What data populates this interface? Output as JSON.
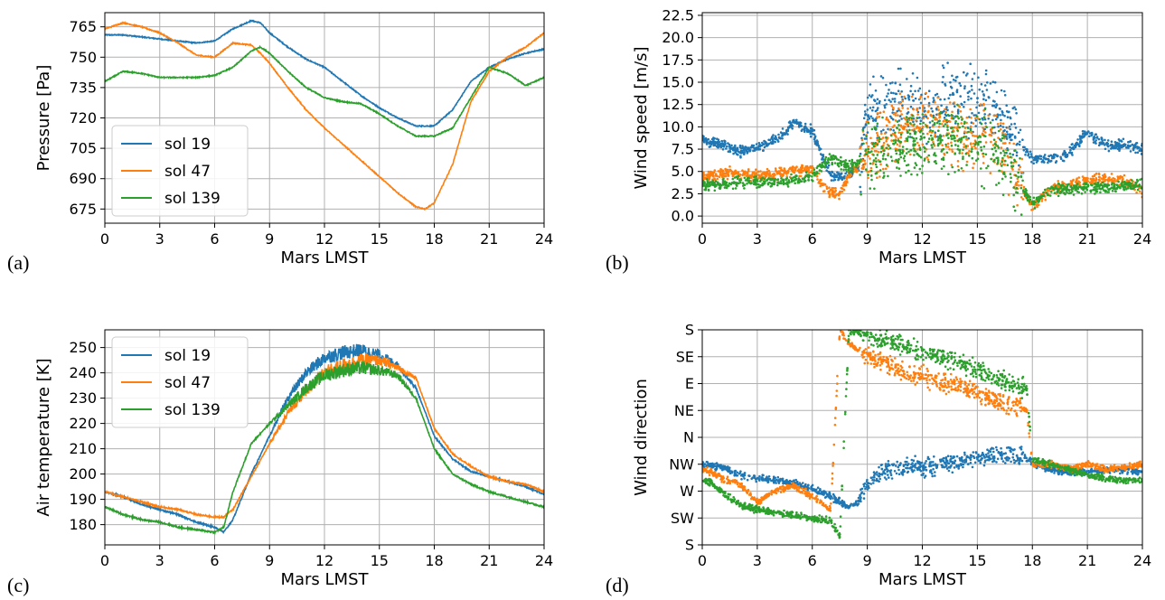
{
  "chart_data": [
    {
      "id": "a",
      "panel_label": "(a)",
      "type": "line",
      "xlabel": "Mars LMST",
      "ylabel": "Pressure [Pa]",
      "xlim": [
        0,
        24
      ],
      "ylim": [
        668,
        772
      ],
      "xticks": [
        0,
        3,
        6,
        9,
        12,
        15,
        18,
        21,
        24
      ],
      "yticks": [
        675,
        690,
        705,
        720,
        735,
        750,
        765
      ],
      "grid": true,
      "legend": {
        "position": "lower-left",
        "entries": [
          "sol 19",
          "sol 47",
          "sol 139"
        ]
      },
      "series": [
        {
          "name": "sol 19",
          "color": "#1f77b4",
          "x": [
            0,
            1,
            2,
            3,
            4,
            5,
            6,
            7,
            8,
            8.5,
            9,
            10,
            11,
            12,
            13,
            14,
            15,
            16,
            17,
            18,
            19,
            20,
            21,
            22,
            23,
            24
          ],
          "y": [
            761,
            761,
            760,
            759,
            758,
            757,
            758,
            764,
            768,
            767,
            762,
            755,
            749,
            745,
            738,
            731,
            725,
            720,
            716,
            716,
            724,
            738,
            745,
            749,
            752,
            754
          ]
        },
        {
          "name": "sol 47",
          "color": "#ff7f0e",
          "x": [
            0,
            1,
            2,
            3,
            4,
            5,
            6,
            7,
            8,
            8.5,
            9,
            10,
            11,
            12,
            13,
            14,
            15,
            16,
            17,
            17.5,
            18,
            19,
            20,
            21,
            22,
            23,
            24
          ],
          "y": [
            764,
            767,
            765,
            762,
            757,
            751,
            750,
            757,
            756,
            752,
            747,
            735,
            724,
            715,
            707,
            699,
            691,
            683,
            676,
            675,
            678,
            697,
            728,
            743,
            750,
            755,
            762
          ]
        },
        {
          "name": "sol 139",
          "color": "#2ca02c",
          "x": [
            0,
            1,
            2,
            3,
            4,
            5,
            6,
            7,
            8,
            8.5,
            9,
            10,
            11,
            12,
            13,
            14,
            15,
            16,
            17,
            18,
            19,
            20,
            21,
            22,
            23,
            24
          ],
          "y": [
            738,
            743,
            742,
            740,
            740,
            740,
            741,
            745,
            753,
            755,
            752,
            743,
            735,
            730,
            728,
            727,
            722,
            716,
            711,
            711,
            715,
            730,
            745,
            742,
            736,
            740
          ]
        }
      ]
    },
    {
      "id": "b",
      "panel_label": "(b)",
      "type": "scatter",
      "xlabel": "Mars LMST",
      "ylabel": "Wind speed [m/s]",
      "xlim": [
        0,
        24
      ],
      "ylim": [
        -0.8,
        22.8
      ],
      "xticks": [
        0,
        3,
        6,
        9,
        12,
        15,
        18,
        21,
        24
      ],
      "yticks": [
        0.0,
        2.5,
        5.0,
        7.5,
        10.0,
        12.5,
        15.0,
        17.5,
        20.0,
        22.5
      ],
      "ytick_labels": [
        "0.0",
        "2.5",
        "5.0",
        "7.5",
        "10.0",
        "12.5",
        "15.0",
        "17.5",
        "20.0",
        "22.5"
      ],
      "grid": true,
      "series": [
        {
          "name": "sol 19",
          "color": "#1f77b4",
          "x": [
            0,
            1,
            2,
            3,
            4,
            5,
            6,
            7,
            8,
            8.7,
            9,
            10,
            11,
            12,
            13,
            14,
            15,
            16,
            17,
            17.5,
            18,
            19,
            20,
            21,
            22,
            23,
            24
          ],
          "y": [
            8.5,
            8.2,
            7.2,
            7.6,
            8.5,
            10.5,
            9.5,
            4.5,
            4.5,
            6,
            12,
            12.5,
            13,
            12,
            13,
            13.5,
            12.5,
            12,
            9,
            7.5,
            6.5,
            6.5,
            7,
            9.5,
            8,
            8,
            7.5
          ]
        },
        {
          "name": "sol 47",
          "color": "#ff7f0e",
          "x": [
            0,
            1,
            2,
            3,
            4,
            5,
            6,
            7,
            7.5,
            8,
            9,
            10,
            11,
            12,
            13,
            14,
            15,
            16,
            17,
            17.5,
            18,
            19,
            20,
            21,
            22,
            23,
            24
          ],
          "y": [
            4.2,
            4.8,
            4.8,
            4.5,
            4.7,
            5.2,
            5.0,
            2.5,
            2.5,
            4.5,
            7,
            9,
            10,
            10.5,
            10,
            9.5,
            9.5,
            8.5,
            5,
            3,
            1,
            3,
            3.5,
            4,
            4.2,
            4,
            2.8
          ]
        },
        {
          "name": "sol 139",
          "color": "#2ca02c",
          "x": [
            0,
            1,
            2,
            3,
            4,
            5,
            6,
            7,
            7.5,
            8,
            9,
            10,
            11,
            12,
            13,
            14,
            15,
            16,
            17,
            17.5,
            18,
            19,
            20,
            21,
            22,
            23,
            24
          ],
          "y": [
            3.5,
            3.5,
            3.8,
            3.8,
            3.8,
            4.0,
            4.5,
            6.5,
            6,
            5.5,
            6.5,
            7.5,
            8,
            8.5,
            8.5,
            8.5,
            8,
            7,
            5,
            3,
            1.3,
            3,
            3,
            3.2,
            3.2,
            3.4,
            3.5
          ]
        }
      ]
    },
    {
      "id": "c",
      "panel_label": "(c)",
      "type": "line",
      "xlabel": "Mars LMST",
      "ylabel": "Air temperature [K]",
      "xlim": [
        0,
        24
      ],
      "ylim": [
        172,
        257
      ],
      "xticks": [
        0,
        3,
        6,
        9,
        12,
        15,
        18,
        21,
        24
      ],
      "yticks": [
        180,
        190,
        200,
        210,
        220,
        230,
        240,
        250
      ],
      "grid": true,
      "legend": {
        "position": "upper-left",
        "entries": [
          "sol 19",
          "sol 47",
          "sol 139"
        ]
      },
      "series": [
        {
          "name": "sol 19",
          "color": "#1f77b4",
          "x": [
            0,
            1,
            2,
            3,
            4,
            5,
            6,
            6.5,
            7,
            8,
            9,
            10,
            11,
            12,
            13,
            14,
            15,
            16,
            17,
            18,
            19,
            20,
            21,
            22,
            23,
            24
          ],
          "y": [
            193,
            191,
            188,
            186,
            184,
            181,
            179,
            177,
            182,
            200,
            215,
            230,
            240,
            246,
            248,
            249,
            247,
            243,
            234,
            215,
            206,
            201,
            199,
            197,
            195,
            192
          ]
        },
        {
          "name": "sol 47",
          "color": "#ff7f0e",
          "x": [
            0,
            1,
            2,
            3,
            4,
            5,
            6,
            6.5,
            7,
            8,
            9,
            10,
            11,
            12,
            13,
            14,
            15,
            16,
            17,
            18,
            19,
            20,
            21,
            22,
            23,
            24
          ],
          "y": [
            193,
            191,
            189,
            187,
            186,
            184,
            183,
            183,
            186,
            199,
            212,
            224,
            233,
            240,
            243,
            245,
            245,
            242,
            238,
            218,
            208,
            203,
            199,
            197,
            196,
            193
          ]
        },
        {
          "name": "sol 139",
          "color": "#2ca02c",
          "x": [
            0,
            1,
            2,
            3,
            4,
            5,
            6,
            6.5,
            7,
            8,
            9,
            10,
            11,
            12,
            13,
            14,
            15,
            16,
            17,
            18,
            19,
            20,
            21,
            22,
            23,
            24
          ],
          "y": [
            187,
            184,
            182,
            181,
            179,
            178,
            177,
            179,
            193,
            212,
            220,
            227,
            234,
            239,
            241,
            242,
            241,
            239,
            230,
            210,
            200,
            196,
            193,
            191,
            189,
            187
          ]
        }
      ]
    },
    {
      "id": "d",
      "panel_label": "(d)",
      "type": "scatter",
      "xlabel": "Mars LMST",
      "ylabel": "Wind direction",
      "xlim": [
        0,
        24
      ],
      "ylim": [
        0,
        8
      ],
      "xticks": [
        0,
        3,
        6,
        9,
        12,
        15,
        18,
        21,
        24
      ],
      "yticks": [
        0,
        1,
        2,
        3,
        4,
        5,
        6,
        7,
        8
      ],
      "ytick_labels": [
        "S",
        "SW",
        "W",
        "NW",
        "N",
        "NE",
        "E",
        "SE",
        "S"
      ],
      "grid": true,
      "series": [
        {
          "name": "sol 19",
          "color": "#1f77b4",
          "x": [
            0,
            1,
            2,
            3,
            4,
            5,
            6,
            7,
            8,
            8.5,
            9,
            10,
            11,
            12,
            13,
            14,
            15,
            16,
            17,
            17.9,
            18,
            19,
            20,
            21,
            22,
            23,
            24
          ],
          "y": [
            3,
            2.9,
            2.6,
            2.5,
            2.4,
            2.3,
            2.1,
            1.8,
            1.4,
            1.6,
            2.3,
            2.8,
            2.9,
            2.9,
            3.0,
            3.1,
            3.2,
            3.3,
            3.3,
            3.2,
            3.0,
            2.8,
            2.7,
            2.7,
            2.8,
            2.8,
            2.7
          ]
        },
        {
          "name": "sol 47",
          "color": "#ff7f0e",
          "x": [
            0,
            0.5,
            1,
            2,
            3,
            4,
            5,
            6,
            7,
            7.5,
            8,
            9,
            10,
            11,
            12,
            13,
            14,
            15,
            16,
            17,
            17.7,
            18,
            19,
            20,
            21,
            22,
            23,
            24
          ],
          "y": [
            2.8,
            2.7,
            2.5,
            2.3,
            1.6,
            2.0,
            2.2,
            1.8,
            1.3,
            8.0,
            7.5,
            7.0,
            6.8,
            6.4,
            6.3,
            6.0,
            5.9,
            5.7,
            5.4,
            5.2,
            5.0,
            3.0,
            3.0,
            2.8,
            3.0,
            2.8,
            2.9,
            3.0
          ]
        },
        {
          "name": "sol 139",
          "color": "#2ca02c",
          "x": [
            0,
            0.5,
            1,
            2,
            3,
            4,
            5,
            6,
            7,
            7.5,
            8,
            9,
            10,
            11,
            12,
            13,
            14,
            15,
            16,
            17,
            17.7,
            18,
            19,
            20,
            21,
            22,
            23,
            24
          ],
          "y": [
            2.4,
            2.3,
            2.0,
            1.5,
            1.3,
            1.2,
            1.1,
            1.0,
            0.9,
            0.3,
            8.0,
            7.8,
            7.6,
            7.4,
            7.2,
            7.0,
            6.8,
            6.5,
            6.2,
            6.0,
            5.8,
            3.2,
            3.0,
            2.8,
            2.6,
            2.5,
            2.4,
            2.4
          ]
        }
      ]
    }
  ]
}
